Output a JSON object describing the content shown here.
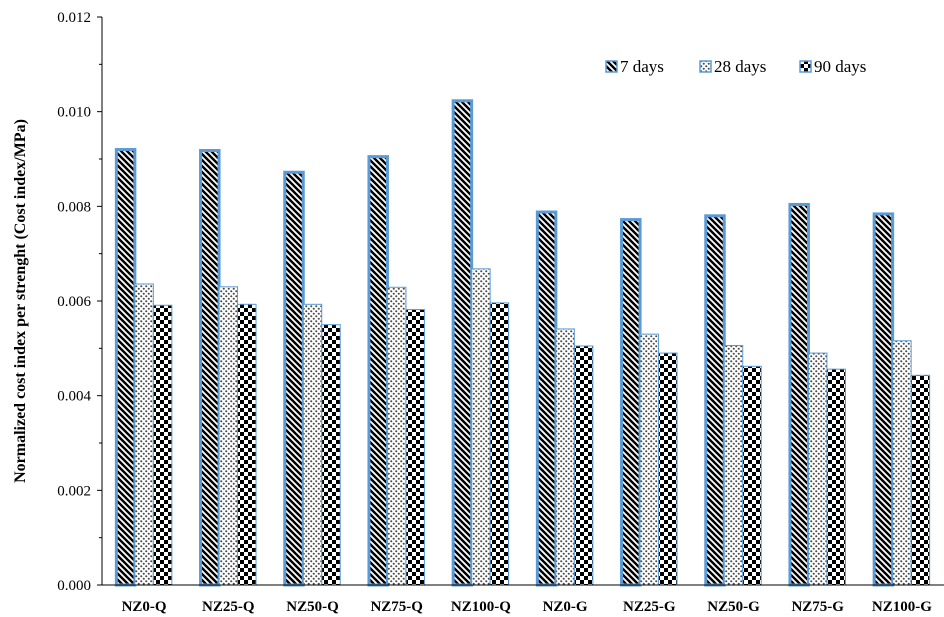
{
  "chart_data": {
    "type": "bar",
    "title": "",
    "xlabel": "",
    "ylabel": "Normalized cost index per strenght (Cost index/MPa)",
    "ylim": [
      0,
      0.012
    ],
    "yticks": [
      "0.000",
      "0.002",
      "0.004",
      "0.006",
      "0.008",
      "0.010",
      "0.012"
    ],
    "categories": [
      "NZ0-Q",
      "NZ25-Q",
      "NZ50-Q",
      "NZ75-Q",
      "NZ100-Q",
      "NZ0-G",
      "NZ25-G",
      "NZ50-G",
      "NZ75-G",
      "NZ100-G"
    ],
    "series": [
      {
        "name": "7 days",
        "pattern": "diagonal-stripes",
        "edge_color": "#5b9bd5",
        "values": [
          0.0092,
          0.00918,
          0.00872,
          0.00905,
          0.01023,
          0.00788,
          0.00772,
          0.0078,
          0.00804,
          0.00784
        ]
      },
      {
        "name": "28 days",
        "pattern": "dots",
        "edge_color": "#5b9bd5",
        "values": [
          0.00636,
          0.0063,
          0.00593,
          0.00629,
          0.00668,
          0.00541,
          0.0053,
          0.00506,
          0.0049,
          0.00516
        ]
      },
      {
        "name": "90 days",
        "pattern": "checkerboard",
        "edge_color": "#5b9bd5",
        "values": [
          0.00591,
          0.00593,
          0.0055,
          0.00582,
          0.00596,
          0.00505,
          0.0049,
          0.00462,
          0.00456,
          0.00443
        ]
      }
    ],
    "legend": "top-right",
    "grid": false
  }
}
